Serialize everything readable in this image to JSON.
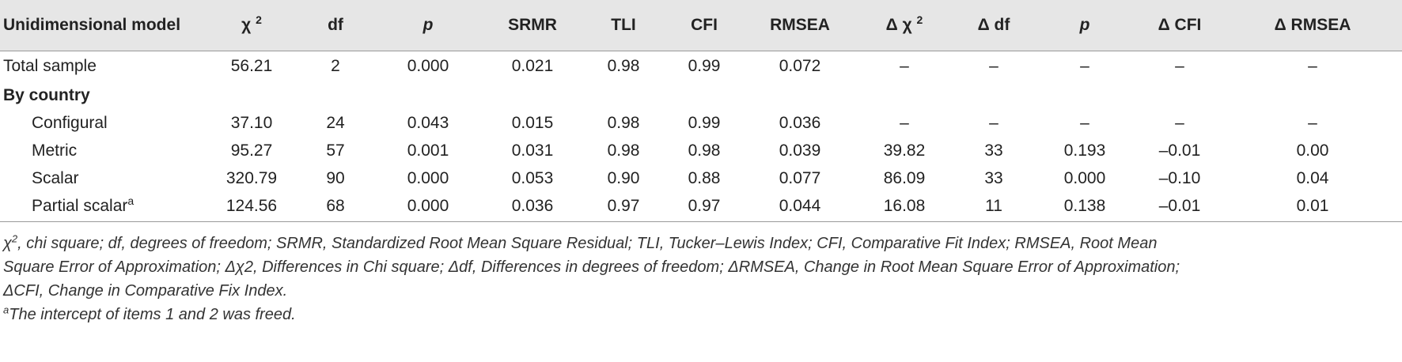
{
  "table": {
    "headers": [
      {
        "text": "Unidimensional model",
        "sup": ""
      },
      {
        "text": "χ ",
        "sup": "2"
      },
      {
        "text": "df",
        "sup": ""
      },
      {
        "text": "p",
        "sup": ""
      },
      {
        "text": "SRMR",
        "sup": ""
      },
      {
        "text": "TLI",
        "sup": ""
      },
      {
        "text": "CFI",
        "sup": ""
      },
      {
        "text": "RMSEA",
        "sup": ""
      },
      {
        "text": "Δ χ ",
        "sup": "2"
      },
      {
        "text": "Δ df",
        "sup": ""
      },
      {
        "text": "p",
        "sup": ""
      },
      {
        "text": "Δ CFI",
        "sup": ""
      },
      {
        "text": "Δ RMSEA",
        "sup": ""
      }
    ],
    "rows": [
      {
        "label": "Total sample",
        "sup": "",
        "cells": [
          "56.21",
          "2",
          "0.000",
          "0.021",
          "0.98",
          "0.99",
          "0.072",
          "–",
          "–",
          "–",
          "–",
          "–"
        ]
      },
      {
        "label": "By country",
        "sup": "",
        "cells": []
      },
      {
        "label": "Configural",
        "sup": "",
        "cells": [
          "37.10",
          "24",
          "0.043",
          "0.015",
          "0.98",
          "0.99",
          "0.036",
          "–",
          "–",
          "–",
          "–",
          "–"
        ]
      },
      {
        "label": "Metric",
        "sup": "",
        "cells": [
          "95.27",
          "57",
          "0.001",
          "0.031",
          "0.98",
          "0.98",
          "0.039",
          "39.82",
          "33",
          "0.193",
          "–0.01",
          "0.00"
        ]
      },
      {
        "label": "Scalar",
        "sup": "",
        "cells": [
          "320.79",
          "90",
          "0.000",
          "0.053",
          "0.90",
          "0.88",
          "0.077",
          "86.09",
          "33",
          "0.000",
          "–0.10",
          "0.04"
        ]
      },
      {
        "label": "Partial scalar",
        "sup": "a",
        "cells": [
          "124.56",
          "68",
          "0.000",
          "0.036",
          "0.97",
          "0.97",
          "0.044",
          "16.08",
          "11",
          "0.138",
          "–0.01",
          "0.01"
        ]
      }
    ]
  },
  "notes": {
    "abbrev_1": "χ",
    "abbrev_1_sup": "2",
    "abbrev_1_rest": ", chi square; df, degrees of freedom; SRMR, Standardized Root Mean Square Residual; TLI, Tucker–Lewis Index; CFI, Comparative Fit Index; RMSEA, Root Mean",
    "abbrev_2": "Square Error of Approximation; Δχ2, Differences in Chi square; Δdf, Differences in degrees of freedom; ΔRMSEA, Change in Root Mean Square Error of Approximation;",
    "abbrev_3": "ΔCFI, Change in Comparative Fix Index.",
    "footnote_mark": "a",
    "footnote_text": "The intercept of items 1 and 2 was freed."
  }
}
